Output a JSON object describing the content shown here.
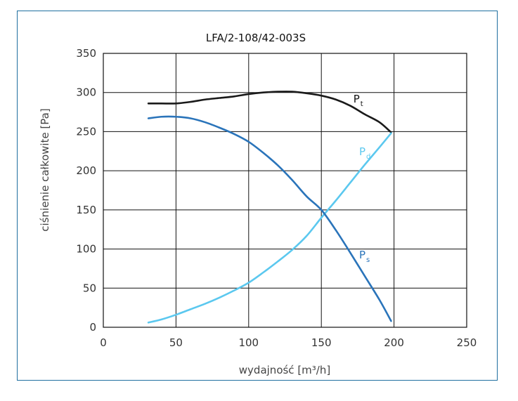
{
  "chart_data": {
    "type": "line",
    "title": "LFA/2-108/42-003S",
    "xlabel": "wydajność [m³/h]",
    "ylabel": "ciśnienie całkowite [Pa]",
    "xlim": [
      0,
      250
    ],
    "ylim": [
      0,
      350
    ],
    "xticks": [
      "0",
      "50",
      "100",
      "150",
      "200",
      "250"
    ],
    "yticks": [
      "0",
      "50",
      "100",
      "150",
      "200",
      "250",
      "300",
      "350"
    ],
    "grid": true,
    "series": [
      {
        "name": "Pt",
        "label_main": "P",
        "label_sub": "t",
        "color": "#1a1a1a",
        "x": [
          31,
          40,
          50,
          60,
          70,
          80,
          90,
          100,
          110,
          120,
          130,
          140,
          150,
          160,
          170,
          180,
          190,
          198
        ],
        "y": [
          286,
          286,
          286,
          288,
          291,
          293,
          295,
          298,
          300,
          301,
          301,
          299,
          296,
          291,
          283,
          272,
          262,
          249
        ]
      },
      {
        "name": "Pd",
        "label_main": "P",
        "label_sub": "d",
        "color": "#5bc8ef",
        "x": [
          31,
          40,
          50,
          60,
          70,
          80,
          90,
          100,
          110,
          120,
          130,
          140,
          150,
          160,
          170,
          180,
          190,
          198
        ],
        "y": [
          6,
          10,
          16,
          23,
          30,
          38,
          47,
          57,
          70,
          84,
          99,
          117,
          140,
          162,
          185,
          208,
          230,
          248
        ]
      },
      {
        "name": "Ps",
        "label_main": "P",
        "label_sub": "s",
        "color": "#2a74ba",
        "x": [
          31,
          40,
          50,
          60,
          70,
          80,
          90,
          100,
          110,
          120,
          130,
          140,
          150,
          160,
          170,
          180,
          190,
          198
        ],
        "y": [
          267,
          269,
          269,
          267,
          262,
          255,
          247,
          237,
          223,
          207,
          188,
          167,
          150,
          124,
          95,
          65,
          35,
          8
        ]
      }
    ]
  }
}
